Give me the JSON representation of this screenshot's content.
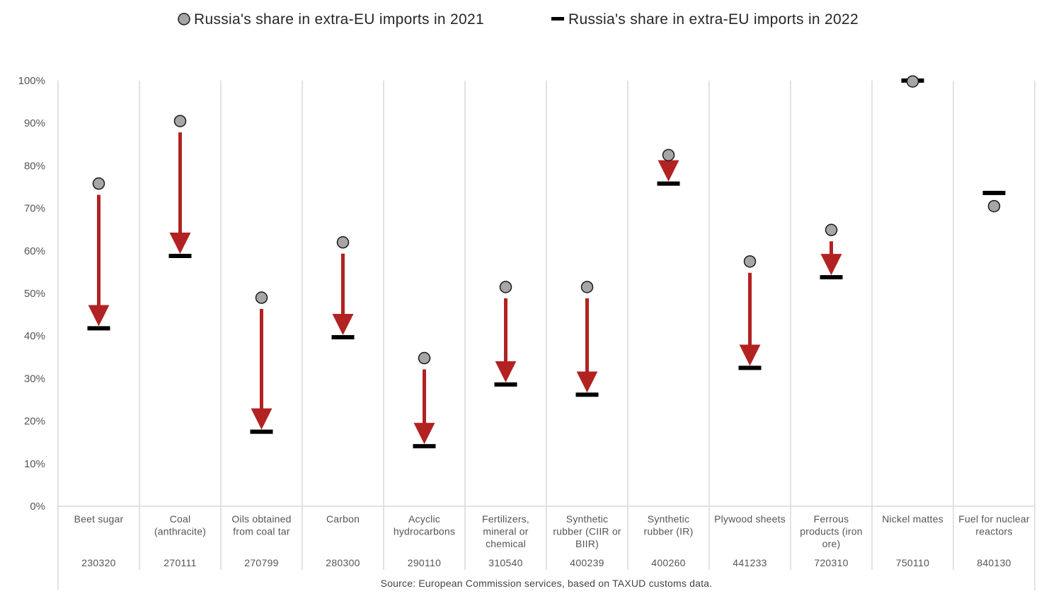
{
  "chart_data": {
    "type": "scatter",
    "legend": {
      "placement": "top-center",
      "series_2021": "Russia's share in extra-EU imports in 2021",
      "series_2022": "Russia's share in extra-EU imports in 2022"
    },
    "y_ticks": [
      "0%",
      "10%",
      "20%",
      "30%",
      "40%",
      "50%",
      "60%",
      "70%",
      "80%",
      "90%",
      "100%"
    ],
    "ylim": [
      0,
      100
    ],
    "grid": "vertical-category-separators",
    "categories": [
      {
        "label": [
          "Beet sugar"
        ],
        "code": "230320",
        "y2021": 75.8,
        "y2022": 41.8
      },
      {
        "label": [
          "Coal",
          "(anthracite)"
        ],
        "code": "270111",
        "y2021": 90.5,
        "y2022": 58.8
      },
      {
        "label": [
          "Oils obtained",
          "from coal tar"
        ],
        "code": "270799",
        "y2021": 49.0,
        "y2022": 17.5
      },
      {
        "label": [
          "Carbon"
        ],
        "code": "280300",
        "y2021": 62.0,
        "y2022": 39.7
      },
      {
        "label": [
          "Acyclic",
          "hydrocarbons"
        ],
        "code": "290110",
        "y2021": 34.8,
        "y2022": 14.1
      },
      {
        "label": [
          "Fertilizers,",
          "mineral or",
          "chemical"
        ],
        "code": "310540",
        "y2021": 51.5,
        "y2022": 28.6
      },
      {
        "label": [
          "Synthetic",
          "rubber (CIIR or",
          "BIIR)"
        ],
        "code": "400239",
        "y2021": 51.5,
        "y2022": 26.2
      },
      {
        "label": [
          "Synthetic",
          "rubber (IR)"
        ],
        "code": "400260",
        "y2021": 82.5,
        "y2022": 75.8
      },
      {
        "label": [
          "Plywood sheets"
        ],
        "code": "441233",
        "y2021": 57.5,
        "y2022": 32.5
      },
      {
        "label": [
          "Ferrous",
          "products (iron",
          "ore)"
        ],
        "code": "720310",
        "y2021": 64.9,
        "y2022": 53.8
      },
      {
        "label": [
          "Nickel mattes"
        ],
        "code": "750110",
        "y2021": 99.8,
        "y2022": 100.0
      },
      {
        "label": [
          "Fuel for nuclear",
          "reactors"
        ],
        "code": "840130",
        "y2021": 70.5,
        "y2022": 73.6
      }
    ],
    "source": "Source: European Commission services, based on TAXUD customs data.",
    "colors": {
      "marker_2021_fill": "#a6a6a6",
      "marker_2021_stroke": "#1a1a1a",
      "marker_2022": "#000000",
      "decline_arrow": "#b22222",
      "grid": "#d9d9d9"
    }
  }
}
